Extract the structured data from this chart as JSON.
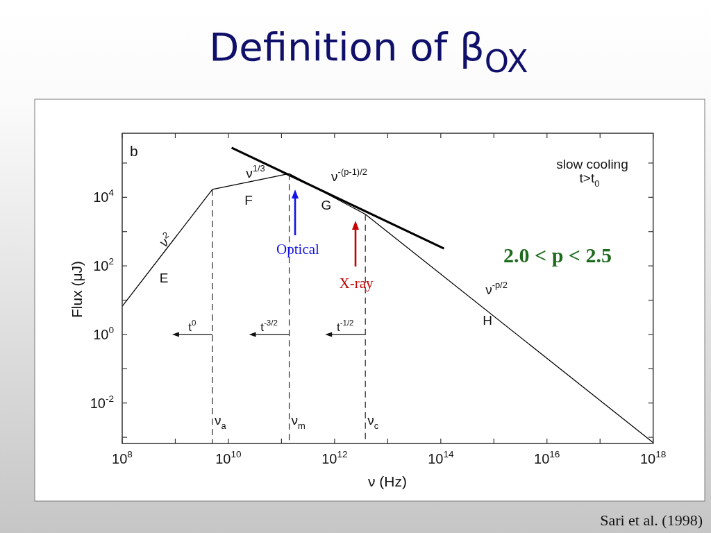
{
  "chart_data": {
    "type": "line",
    "title": "Definition of β$_{OX}$",
    "xlabel": "ν (Hz)",
    "ylabel": "Flux (μJ)",
    "log": "xy",
    "xlim": [
      100000000.0,
      1e+18
    ],
    "ylim": [
      0.00066,
      740000.0
    ],
    "xticks": [
      {
        "value": 100000000.0,
        "label": "10$^{8}$"
      },
      {
        "value": 1000000000.0,
        "label": null
      },
      {
        "value": 10000000000.0,
        "label": "10$^{10}$"
      },
      {
        "value": 100000000000.0,
        "label": null
      },
      {
        "value": 1000000000000.0,
        "label": "10$^{12}$"
      },
      {
        "value": 10000000000000.0,
        "label": null
      },
      {
        "value": 100000000000000.0,
        "label": "10$^{14}$"
      },
      {
        "value": 1000000000000000.0,
        "label": null
      },
      {
        "value": 1e+16,
        "label": "10$^{16}$"
      },
      {
        "value": 1e+17,
        "label": null
      },
      {
        "value": 1e+18,
        "label": "10$^{18}$"
      }
    ],
    "yticks": [
      {
        "value": 0.001,
        "label": null
      },
      {
        "value": 0.01,
        "label": "10$^{-2}$"
      },
      {
        "value": 0.1,
        "label": null
      },
      {
        "value": 1,
        "label": "10$^{0}$"
      },
      {
        "value": 10,
        "label": null
      },
      {
        "value": 100,
        "label": "10$^{2}$"
      },
      {
        "value": 1000,
        "label": null
      },
      {
        "value": 10000,
        "label": "10$^{4}$"
      },
      {
        "value": 100000,
        "label": null
      }
    ],
    "series": [
      {
        "color": "#000000",
        "x": [
          100000000.0,
          5000000000.0,
          140000000000.0,
          3800000000000.0,
          1e+18
        ],
        "values": [
          6.6,
          17000,
          49000,
          3200,
          0.0007
        ]
      },
      {
        "color": "#000000",
        "x": [
          11500000000.0,
          115000000000000.0
        ],
        "values": [
          280000,
          320
        ]
      },
      {
        "color": "#333333",
        "line_style": "dashed",
        "x": [
          5000000000.0,
          5000000000.0
        ],
        "values": [
          17000,
          0.00066
        ]
      },
      {
        "color": "#333333",
        "line_style": "dashed",
        "x": [
          140000000000.0,
          140000000000.0
        ],
        "values": [
          49000,
          0.00066
        ]
      },
      {
        "color": "#333333",
        "line_style": "dashed",
        "x": [
          3800000000000.0,
          3800000000000.0
        ],
        "values": [
          3200,
          0.00066
        ]
      }
    ],
    "annotations": [
      "b",
      "slow cooling",
      "t>t$_{0}$",
      "ν$^{2}$",
      "E",
      "ν$^{1/3}$",
      "F",
      "ν$^{-(p-1)/2}$",
      "G",
      "ν$^{-p/2}$",
      "H",
      {
        "text": "ν$_{a}$",
        "x": 5000000000.0,
        "y": 0.0023
      },
      {
        "text": "ν$_{m}$",
        "x": 140000000000.0,
        "y": 0.0023
      },
      {
        "text": "ν$_{c}$",
        "x": 3800000000000.0,
        "y": 0.0023
      },
      {
        "text": "t$^{0}$",
        "x": 5000000000.0,
        "y": 1
      },
      {
        "text": "t$^{-3/2}$",
        "x": 140000000000.0,
        "y": 1
      },
      {
        "text": "t$^{-1/2}$",
        "x": 3800000000000.0,
        "y": 1
      },
      "Optical",
      "X-ray",
      "2.0 < p < 2.5",
      "Sari et al. (1998)"
    ]
  }
}
